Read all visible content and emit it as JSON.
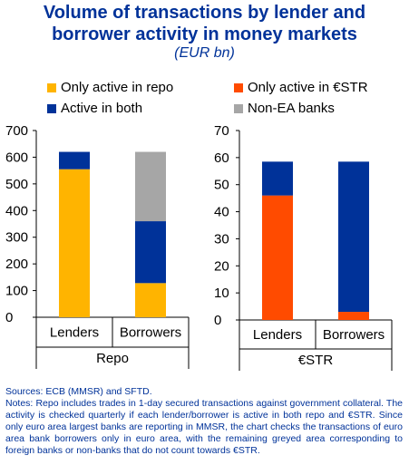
{
  "title_line1": "Volume of transactions by lender and",
  "title_line2": "borrower activity in money markets",
  "subtitle": "(EUR bn)",
  "legend": [
    {
      "label": "Only active in repo",
      "color": "#FFB400"
    },
    {
      "label": "Only active in €STR",
      "color": "#FF4B00"
    },
    {
      "label": "Active in both",
      "color": "#003299"
    },
    {
      "label": "Non-EA banks",
      "color": "#A6A6A6"
    }
  ],
  "chart_data": [
    {
      "type": "bar",
      "stacked": true,
      "xlabel": "Repo",
      "categories": [
        "Lenders",
        "Borrowers"
      ],
      "ylim": [
        0,
        700
      ],
      "yticks": [
        0,
        100,
        200,
        300,
        400,
        500,
        600,
        700
      ],
      "series": [
        {
          "name": "Only active in repo",
          "color": "#FFB400",
          "values": [
            555,
            128
          ]
        },
        {
          "name": "Active in both",
          "color": "#003299",
          "values": [
            65,
            232
          ]
        },
        {
          "name": "Non-EA banks",
          "color": "#A6A6A6",
          "values": [
            0,
            260
          ]
        }
      ]
    },
    {
      "type": "bar",
      "stacked": true,
      "xlabel": "€STR",
      "categories": [
        "Lenders",
        "Borrowers"
      ],
      "ylim": [
        0,
        70
      ],
      "yticks": [
        0,
        10,
        20,
        30,
        40,
        50,
        60,
        70
      ],
      "series": [
        {
          "name": "Only active in €STR",
          "color": "#FF4B00",
          "values": [
            46,
            3
          ]
        },
        {
          "name": "Active in both",
          "color": "#003299",
          "values": [
            12.5,
            55.5
          ]
        }
      ]
    }
  ],
  "footer": {
    "sources": "Sources: ECB (MMSR) and SFTD.",
    "notes": "Notes: Repo includes trades in 1-day secured transactions against government collateral. The activity is checked quarterly if each lender/borrower is active in both repo and €STR. Since only euro area largest banks are reporting in MMSR, the chart checks the transactions of euro area bank borrowers only in euro area, with the remaining greyed area corresponding to foreign banks or non-banks that do not count towards €STR."
  }
}
